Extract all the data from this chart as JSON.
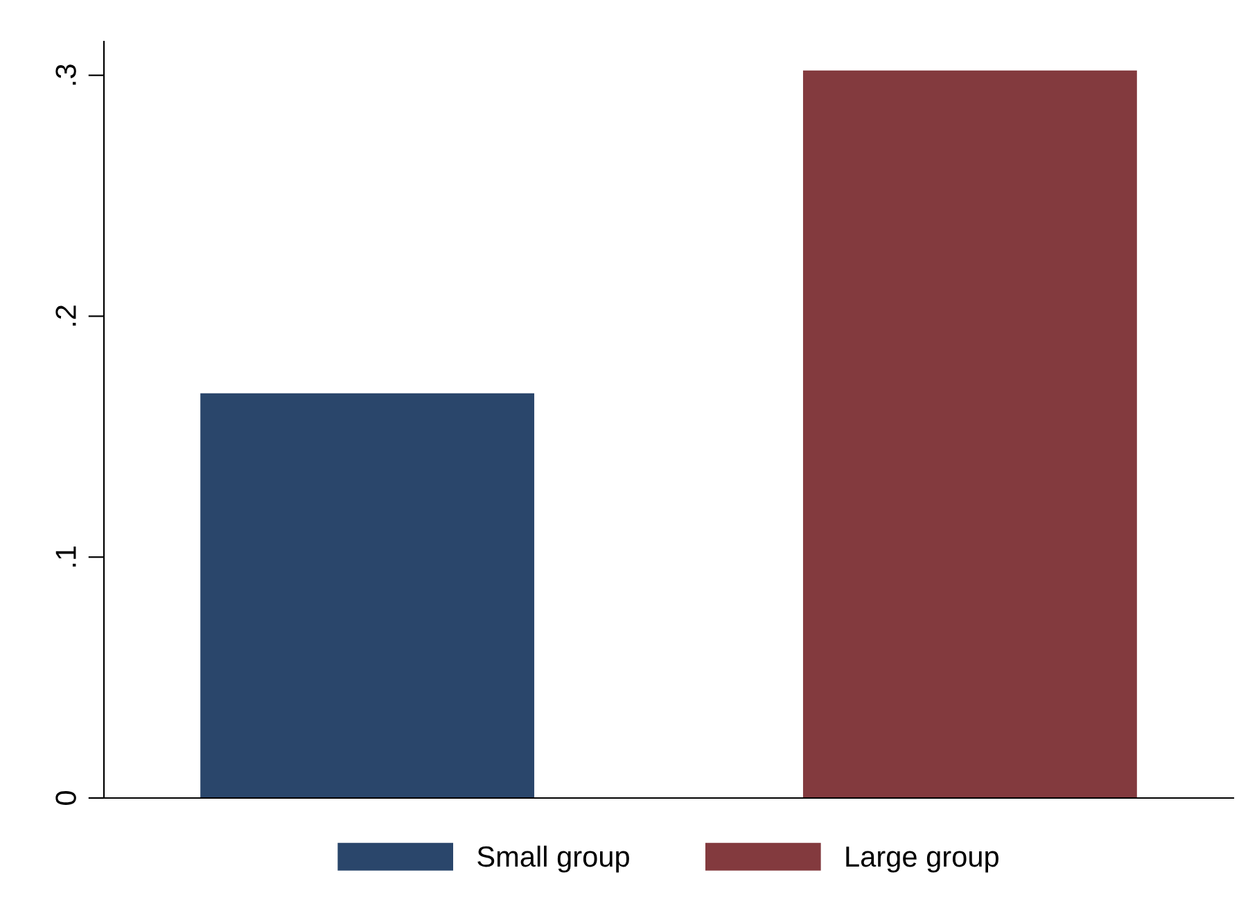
{
  "chart_data": {
    "type": "bar",
    "categories": [
      null,
      null
    ],
    "series": [
      {
        "name": "Small group",
        "color": "#2a466b",
        "values": [
          0.168,
          null
        ]
      },
      {
        "name": "Large group",
        "color": "#833a3e",
        "values": [
          null,
          0.302
        ]
      }
    ],
    "ylim": [
      0,
      0.314
    ],
    "yticks": [
      0,
      {
        "value": 0.1,
        "label": ".1"
      },
      {
        "value": 0.2,
        "label": ".2"
      },
      {
        "value": 0.3,
        "label": ".3"
      }
    ],
    "grid": false,
    "legend": "bottom"
  }
}
